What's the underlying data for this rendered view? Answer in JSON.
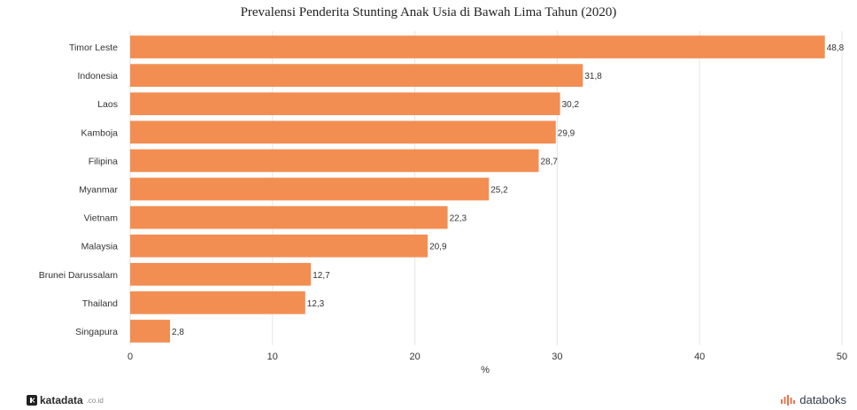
{
  "chart_data": {
    "type": "bar",
    "orientation": "horizontal",
    "title": "Prevalensi Penderita Stunting Anak Usia di Bawah Lima Tahun (2020)",
    "xlabel": "%",
    "ylabel": "",
    "xlim": [
      0,
      50
    ],
    "xticks": [
      0,
      10,
      20,
      30,
      40,
      50
    ],
    "grid": "vertical",
    "bar_color": "#F28E52",
    "categories": [
      "Timor Leste",
      "Indonesia",
      "Laos",
      "Kamboja",
      "Filipina",
      "Myanmar",
      "Vietnam",
      "Malaysia",
      "Brunei Darussalam",
      "Thailand",
      "Singapura"
    ],
    "values": [
      48.8,
      31.8,
      30.2,
      29.9,
      28.7,
      25.2,
      22.3,
      20.9,
      12.7,
      12.3,
      2.8
    ],
    "value_labels": [
      "48,8",
      "31,8",
      "30,2",
      "29,9",
      "28,7",
      "25,2",
      "22,3",
      "20,9",
      "12,7",
      "12,3",
      "2,8"
    ]
  },
  "footer": {
    "left_brand": "katadata",
    "left_suffix": ".co.id",
    "right_brand": "databoks"
  }
}
